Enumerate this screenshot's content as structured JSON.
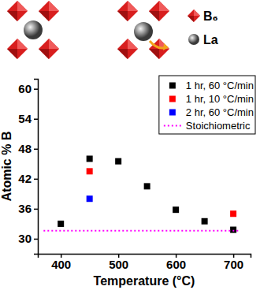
{
  "chart_data": {
    "type": "scatter",
    "x_label": "Temperature (°C)",
    "y_label": "Atomic % B",
    "xlim": [
      360,
      730
    ],
    "xticks": [
      400,
      500,
      600,
      700
    ],
    "ylim": [
      27,
      62
    ],
    "yticks": [
      30,
      36,
      42,
      48,
      54,
      60
    ],
    "legend": "top-right",
    "series": [
      {
        "name": "1 hr, 60 °C/min",
        "color": "#000000",
        "marker": "square",
        "x": [
          400,
          450,
          500,
          550,
          600,
          650,
          700
        ],
        "values": [
          33,
          46,
          45.5,
          40.5,
          35.8,
          33.5,
          31.8
        ]
      },
      {
        "name": "1 hr, 10 °C/min",
        "color": "#ff0000",
        "marker": "square",
        "x": [
          450,
          700
        ],
        "values": [
          43.5,
          35
        ]
      },
      {
        "name": "2 hr, 60 °C/min",
        "color": "#0000ff",
        "marker": "square",
        "x": [
          450
        ],
        "values": [
          38
        ]
      },
      {
        "name": "Stoichiometric",
        "color": "#ff00ff",
        "type": "line",
        "line_style": "dotted",
        "x": [
          370,
          710
        ],
        "values": [
          31.6,
          31.6
        ]
      }
    ]
  },
  "illustration": {
    "labels": [
      "B₆",
      "La"
    ]
  }
}
